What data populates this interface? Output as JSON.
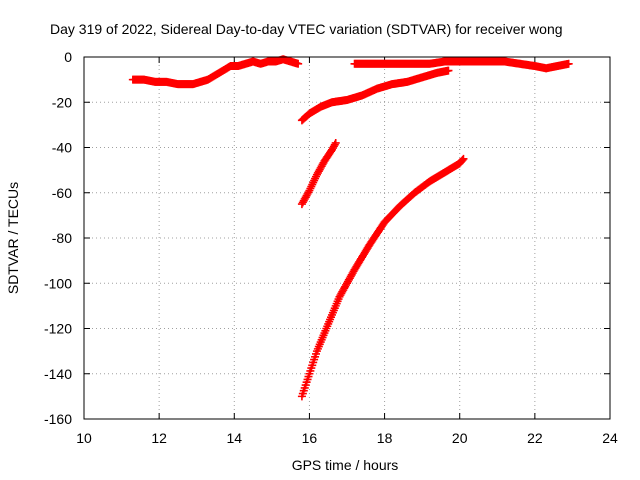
{
  "chart_data": {
    "type": "scatter",
    "title": "Day 319 of 2022, Sidereal Day-to-day VTEC variation (SDTVAR) for receiver wong",
    "xlabel": "GPS time / hours",
    "ylabel": "SDTVAR / TECUs",
    "xlim": [
      10,
      24
    ],
    "ylim": [
      -160,
      0
    ],
    "xticks": [
      10,
      12,
      14,
      16,
      18,
      20,
      22,
      24
    ],
    "yticks": [
      0,
      -20,
      -40,
      -60,
      -80,
      -100,
      -120,
      -140,
      -160
    ],
    "grid": true,
    "marker": "plus",
    "color": "#ff0000",
    "series": [
      {
        "x": [
          11.3,
          11.6,
          11.9,
          12.2,
          12.5,
          12.7,
          12.9,
          13.1,
          13.3,
          13.5,
          13.7,
          13.9,
          14.1,
          14.3,
          14.5,
          14.7,
          14.9,
          15.1,
          15.3,
          15.5,
          15.7
        ],
        "y": [
          -10,
          -10,
          -11,
          -11,
          -12,
          -12,
          -12,
          -11,
          -10,
          -8,
          -6,
          -4,
          -4,
          -3,
          -2,
          -3,
          -2,
          -2,
          -1,
          -2,
          -3
        ]
      },
      {
        "x": [
          15.8,
          16.0,
          16.3,
          16.6,
          17.0,
          17.4,
          17.8,
          18.2,
          18.6,
          19.0,
          19.4,
          19.7
        ],
        "y": [
          -28,
          -25,
          -22,
          -20,
          -19,
          -17,
          -14,
          -12,
          -11,
          -9,
          -7,
          -6
        ]
      },
      {
        "x": [
          15.8,
          16.0,
          16.2,
          16.4,
          16.6,
          16.7
        ],
        "y": [
          -65,
          -59,
          -52,
          -46,
          -41,
          -38
        ]
      },
      {
        "x": [
          15.8,
          16.0,
          16.2,
          16.5,
          16.8,
          17.2,
          17.6,
          18.0,
          18.4,
          18.8,
          19.2,
          19.6,
          20.0,
          20.1
        ],
        "y": [
          -150,
          -140,
          -130,
          -118,
          -106,
          -94,
          -83,
          -73,
          -66,
          -60,
          -55,
          -51,
          -47,
          -45
        ]
      },
      {
        "x": [
          17.2,
          17.6,
          18.0,
          18.4,
          18.8,
          19.2,
          19.6,
          20.0,
          20.4,
          20.8,
          21.2,
          21.6,
          22.0,
          22.3,
          22.6,
          22.9
        ],
        "y": [
          -3,
          -3,
          -3,
          -3,
          -3,
          -3,
          -2,
          -2,
          -2,
          -2,
          -2,
          -3,
          -4,
          -5,
          -4,
          -3
        ]
      }
    ]
  }
}
